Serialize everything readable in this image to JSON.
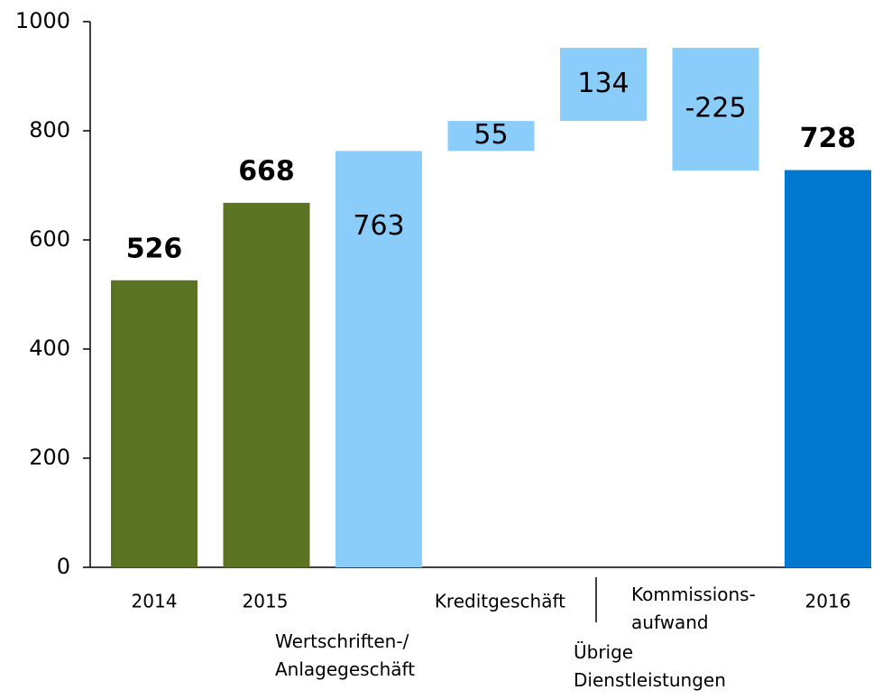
{
  "chart_data": {
    "type": "waterfall",
    "categories": [
      "2014",
      "2015",
      "Wertschriften-/\nAnlagegeschäft",
      "Kreditgeschäft",
      "Übrige\nDienstleistungen",
      "Kommissions-\naufwand",
      "2016"
    ],
    "values": [
      526,
      668,
      763,
      55,
      134,
      -225,
      728
    ],
    "measures": [
      "total",
      "total",
      "absolute",
      "relative",
      "relative",
      "relative",
      "total"
    ],
    "colors": [
      "#5a7423",
      "#5a7423",
      "#8accfa",
      "#8accfa",
      "#8accfa",
      "#8accfa",
      "#0078d0"
    ],
    "ylim": [
      0,
      1000
    ],
    "yticks": [
      0,
      200,
      400,
      600,
      800,
      1000
    ]
  }
}
